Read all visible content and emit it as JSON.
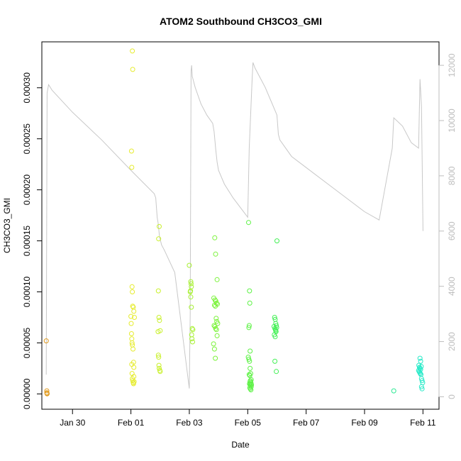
{
  "chart_data": {
    "type": "scatter",
    "title": "ATOM2 Southbound CH3CO3_GMI",
    "xlabel": "Date",
    "ylabel": "CH3CO3_GMI",
    "y2label": "",
    "x_ticks": [
      "Jan 30",
      "Feb 01",
      "Feb 03",
      "Feb 05",
      "Feb 07",
      "Feb 09",
      "Feb 11"
    ],
    "x_tick_days": [
      30,
      32,
      34,
      36,
      38,
      40,
      42
    ],
    "xlim": [
      28.95,
      42.55
    ],
    "ylim": [
      -1.5e-05,
      0.000345
    ],
    "y_ticks": [
      0,
      5e-05,
      0.0001,
      0.00015,
      0.0002,
      0.00025,
      0.0003
    ],
    "y_tick_labels": [
      "0.00000",
      "0.00005",
      "0.00010",
      "0.00015",
      "0.00020",
      "0.00025",
      "0.00030"
    ],
    "y2lim": [
      -450,
      12850
    ],
    "y2_ticks": [
      0,
      2000,
      4000,
      6000,
      8000,
      10000,
      12000
    ],
    "y2_tick_labels": [
      "0",
      "2000",
      "4000",
      "6000",
      "8000",
      "10000",
      "12000"
    ],
    "grid": false,
    "legend": "none",
    "colors": {
      "altitude_line": "#c8c8c8",
      "palette": [
        "#e09a1f",
        "#e6ec2e",
        "#c9f02c",
        "#90f33a",
        "#56f24a",
        "#33f0a0",
        "#27eac8"
      ]
    },
    "series": [
      {
        "color": "#e09a1f",
        "x": [
          29.1,
          29.12,
          29.12,
          29.13,
          29.13
        ],
        "y": [
          5.2e-05,
          3e-06,
          1.2e-06,
          5e-07,
          1e-07
        ]
      },
      {
        "color": "#e6ec2e",
        "x": [
          32.05,
          32.06,
          32.03,
          32.02,
          32.04,
          32.05,
          32.06,
          32.08,
          32.1,
          32.12,
          32.0,
          32.01,
          32.02,
          32.03,
          32.04,
          32.05,
          32.07,
          32.09,
          32.1,
          32.1,
          32.11,
          32.03,
          32.04,
          32.05,
          32.06,
          32.08,
          32.09
        ],
        "y": [
          0.000336,
          0.000318,
          0.000222,
          0.000238,
          0.000105,
          0.0001,
          8.6e-05,
          8.5e-05,
          8.1e-05,
          7.5e-05,
          7.6e-05,
          6.9e-05,
          5.9e-05,
          5.4e-05,
          5e-05,
          4.8e-05,
          4.4e-05,
          3.1e-05,
          2.6e-05,
          1.7e-05,
          1.2e-05,
          2.9e-05,
          2e-05,
          1.5e-05,
          1.3e-05,
          1.1e-05,
          1e-05
        ]
      },
      {
        "color": "#c9f02c",
        "x": [
          32.97,
          32.95,
          32.94,
          32.96,
          32.98,
          33.0,
          32.93,
          32.94,
          32.95,
          32.96,
          32.97,
          32.99,
          33.0
        ],
        "y": [
          0.000164,
          0.000152,
          0.000101,
          7.5e-05,
          7.2e-05,
          6.2e-05,
          6.1e-05,
          3.8e-05,
          3.6e-05,
          2.8e-05,
          2.5e-05,
          2.3e-05,
          2.2e-05
        ]
      },
      {
        "color": "#a8f133",
        "x": [
          34.0,
          34.05,
          34.06,
          34.07,
          34.04,
          34.03,
          34.05,
          34.07,
          34.1,
          34.12,
          34.08,
          34.09,
          34.11
        ],
        "y": [
          0.000126,
          0.00011,
          0.000108,
          0.000105,
          0.000101,
          0.0001,
          9.5e-05,
          8.5e-05,
          6.4e-05,
          6.3e-05,
          5.8e-05,
          5.4e-05,
          5.1e-05
        ]
      },
      {
        "color": "#7cf33c",
        "x": [
          34.87,
          34.9,
          34.95,
          34.84,
          34.88,
          34.91,
          34.93,
          34.96,
          34.86,
          34.89,
          34.92,
          34.94,
          34.97,
          34.85,
          34.88,
          34.9,
          34.93,
          34.95,
          34.83,
          34.86,
          34.89
        ],
        "y": [
          0.000153,
          0.000137,
          0.000112,
          9.4e-05,
          9.2e-05,
          9.1e-05,
          8.9e-05,
          8.8e-05,
          8.7e-05,
          8.6e-05,
          7.4e-05,
          7.1e-05,
          6.9e-05,
          6.7e-05,
          6.6e-05,
          6.4e-05,
          6.3e-05,
          5.7e-05,
          4.9e-05,
          4.4e-05,
          3.5e-05
        ]
      },
      {
        "color": "#5ef246",
        "x": [
          36.03,
          36.06,
          36.07,
          36.05,
          36.04,
          36.08,
          36.02,
          36.04,
          36.06,
          36.08,
          36.1,
          36.05,
          36.07,
          36.09,
          36.11,
          36.06,
          36.08,
          36.1,
          36.12,
          36.07,
          36.09,
          36.11,
          36.13,
          36.08,
          36.1,
          36.12
        ],
        "y": [
          0.000168,
          0.000101,
          8.9e-05,
          6.7e-05,
          6.5e-05,
          4.2e-05,
          3.6e-05,
          3.4e-05,
          3.2e-05,
          2.5e-05,
          2e-05,
          1.9e-05,
          1.8e-05,
          1.3e-05,
          1.1e-05,
          1e-05,
          9e-06,
          8e-06,
          7e-06,
          6e-06,
          5e-06,
          4e-06,
          9e-06,
          1.2e-05,
          1e-05,
          1.4e-05
        ]
      },
      {
        "color": "#44f056",
        "x": [
          37.0,
          36.92,
          36.94,
          36.96,
          36.98,
          36.9,
          36.93,
          36.95,
          36.97,
          36.91,
          36.94,
          36.96,
          36.99,
          36.93,
          36.98
        ],
        "y": [
          0.00015,
          7.5e-05,
          7.3e-05,
          6.9e-05,
          6.7e-05,
          6.6e-05,
          6.4e-05,
          6.3e-05,
          6.1e-05,
          5.8e-05,
          5.6e-05,
          6.2e-05,
          6.5e-05,
          3.2e-05,
          2.2e-05
        ]
      },
      {
        "color": "#2fe995",
        "x": [
          41.0
        ],
        "y": [
          3e-06
        ]
      },
      {
        "color": "#27eac8",
        "x": [
          41.9,
          41.92,
          41.86,
          41.88,
          41.9,
          41.92,
          41.94,
          41.85,
          41.87,
          41.89,
          41.91,
          41.93,
          41.95,
          41.97,
          41.99,
          41.95,
          41.97
        ],
        "y": [
          3.5e-05,
          3.2e-05,
          2.8e-05,
          2.6e-05,
          2.5e-05,
          2.4e-05,
          2.7e-05,
          2.3e-05,
          2.2e-05,
          2.1e-05,
          2e-05,
          1.9e-05,
          1.5e-05,
          1.3e-05,
          1.1e-05,
          7e-06,
          5e-06
        ]
      }
    ],
    "altitude_series": {
      "axis": "right",
      "x": [
        29.1,
        29.13,
        29.18,
        29.3,
        30.0,
        31.0,
        32.0,
        32.8,
        32.85,
        32.9,
        32.93,
        32.98,
        33.05,
        33.1,
        33.15,
        33.5,
        34.0,
        34.03,
        34.06,
        34.08,
        34.1,
        34.2,
        34.4,
        34.6,
        34.8,
        34.85,
        34.9,
        34.95,
        35.0,
        35.2,
        35.5,
        36.0,
        36.05,
        36.15,
        36.18,
        36.25,
        36.6,
        37.0,
        37.05,
        37.1,
        37.5,
        38.0,
        39.0,
        40.0,
        40.5,
        40.95,
        41.0,
        41.3,
        41.6,
        41.85,
        41.9,
        41.95,
        41.98,
        42.0
      ],
      "y": [
        800,
        11000,
        11300,
        11100,
        10300,
        9300,
        8200,
        7350,
        7200,
        6500,
        6300,
        5800,
        5500,
        5400,
        5300,
        4500,
        300,
        3000,
        11800,
        12000,
        11600,
        11200,
        10600,
        10200,
        9900,
        9600,
        9000,
        8500,
        8200,
        7700,
        7200,
        6500,
        9000,
        11500,
        12100,
        11900,
        11200,
        10200,
        9500,
        9300,
        8700,
        8300,
        7500,
        6700,
        6400,
        9000,
        10100,
        9800,
        9200,
        9000,
        11500,
        10500,
        8000,
        6000
      ]
    }
  }
}
